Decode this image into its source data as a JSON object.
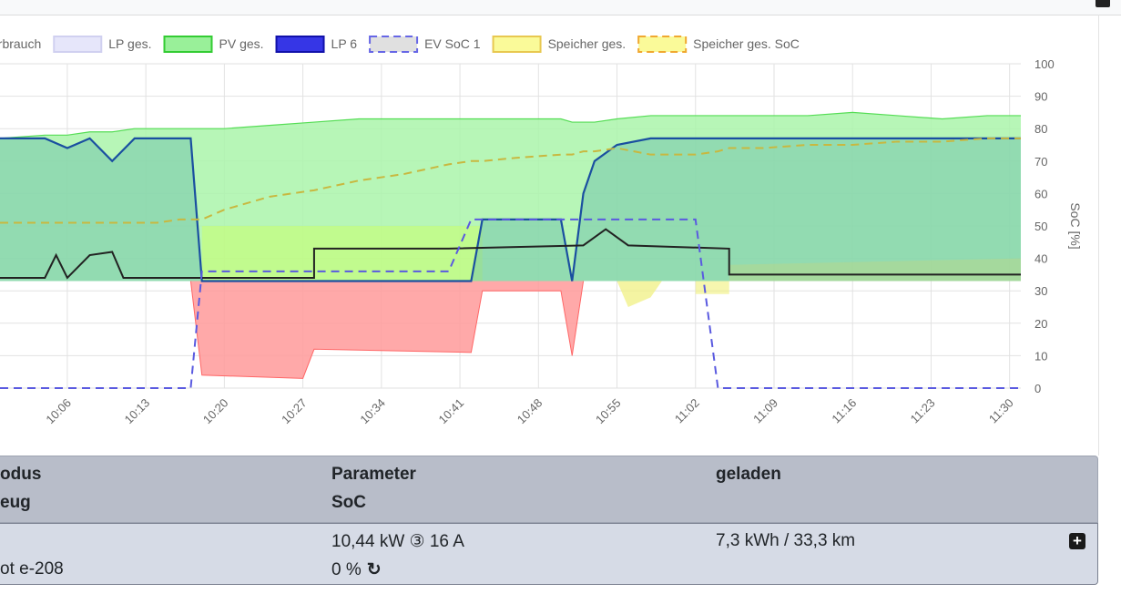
{
  "header": {
    "legend": [
      {
        "label": "erbrauch",
        "type": "none",
        "fill": "",
        "stroke": ""
      },
      {
        "label": "LP ges.",
        "type": "solid",
        "fill": "#e6e6fa",
        "stroke": "#d0d0f0"
      },
      {
        "label": "PV ges.",
        "type": "solid",
        "fill": "#99f099",
        "stroke": "#33cc33"
      },
      {
        "label": "LP 6",
        "type": "solid",
        "fill": "#3636e6",
        "stroke": "#1111aa"
      },
      {
        "label": "EV SoC 1",
        "type": "dashed",
        "fill": "#e0e0e0",
        "stroke": "#6666e6"
      },
      {
        "label": "Speicher ges.",
        "type": "solid",
        "fill": "#fafa99",
        "stroke": "#e8c850"
      },
      {
        "label": "Speicher ges. SoC",
        "type": "dashed",
        "fill": "#fafa99",
        "stroke": "#f0a830"
      }
    ]
  },
  "chart_data": {
    "type": "area",
    "x": [
      "10:00",
      "10:04",
      "10:06",
      "10:08",
      "10:10",
      "10:12",
      "10:14",
      "10:16",
      "10:17",
      "10:18",
      "10:20",
      "10:24",
      "10:28",
      "10:32",
      "10:36",
      "10:40",
      "10:42",
      "10:43",
      "10:46",
      "10:50",
      "10:51",
      "10:52",
      "10:53",
      "10:55",
      "10:58",
      "11:02",
      "11:04",
      "11:05",
      "11:08",
      "11:12",
      "11:16",
      "11:20",
      "11:24",
      "11:28",
      "11:31"
    ],
    "x_ticks": [
      "10:06",
      "10:13",
      "10:20",
      "10:27",
      "10:34",
      "10:41",
      "10:48",
      "10:55",
      "11:02",
      "11:09",
      "11:16",
      "11:23",
      "11:30"
    ],
    "y_right_label": "SoC [%]",
    "y_right_ticks": [
      "0",
      "10",
      "20",
      "30",
      "40",
      "50",
      "60",
      "70",
      "80",
      "90",
      "100"
    ],
    "y_right_range": [
      0,
      100
    ],
    "colors": {
      "pv": "#55dd55",
      "lp6": "#1a4fa0",
      "haus": "#222222",
      "evu": "#ff6666",
      "speicher": "#f0f07a",
      "ev_soc": "#5a5ae0",
      "speicher_soc": "#c8b840"
    },
    "series": [
      {
        "name": "PV ges.",
        "values": [
          77,
          78,
          78,
          79,
          79,
          80,
          80,
          80,
          80,
          80,
          80,
          81,
          82,
          83,
          83,
          83,
          83,
          83,
          83,
          83,
          82,
          82,
          82,
          83,
          84,
          84,
          84,
          84,
          84,
          84,
          85,
          84,
          83,
          84,
          84
        ]
      },
      {
        "name": "LP 6",
        "values": [
          77,
          77,
          74,
          77,
          70,
          77,
          77,
          77,
          77,
          33,
          33,
          33,
          33,
          33,
          33,
          33,
          33,
          52,
          52,
          52,
          33,
          60,
          70,
          75,
          77,
          77,
          77,
          77,
          77,
          77,
          77,
          77,
          77,
          77,
          77
        ]
      },
      {
        "name": "EV SoC 1",
        "values": [
          0,
          0,
          0,
          0,
          0,
          0,
          0,
          0,
          0,
          36,
          36,
          36,
          36,
          36,
          36,
          36,
          52,
          52,
          52,
          52,
          52,
          52,
          52,
          52,
          52,
          52,
          0,
          0,
          0,
          0,
          0,
          0,
          0,
          0,
          0
        ]
      },
      {
        "name": "Speicher ges. SoC",
        "values": [
          51,
          51,
          51,
          51,
          51,
          51,
          51,
          52,
          52,
          52,
          55,
          59,
          61,
          64,
          66,
          69,
          70,
          70,
          71,
          72,
          72,
          73,
          73,
          74,
          72,
          72,
          73,
          74,
          74,
          75,
          75,
          76,
          76,
          77,
          77
        ]
      }
    ]
  },
  "table": {
    "headers": {
      "col1_line1": "odus",
      "col1_line2": "eug",
      "col2_line1": "Parameter",
      "col2_line2": "SoC",
      "col3_line1": "geladen"
    },
    "row": {
      "col1_line2": "ot e-208",
      "power": "10,44 kW ③ 16 A",
      "soc": "0 %",
      "charged": "7,3 kWh / 33,3 km",
      "expand": "+"
    }
  }
}
